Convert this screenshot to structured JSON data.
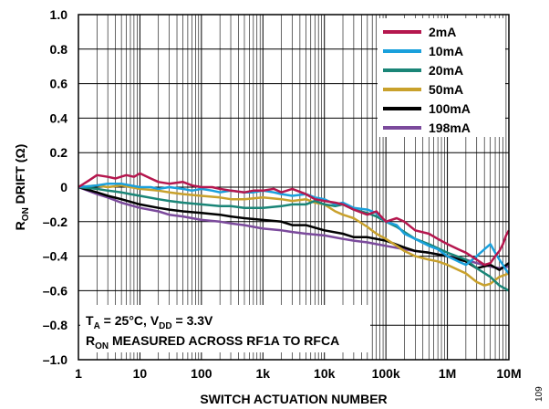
{
  "chart_data": {
    "type": "line",
    "xlabel": "SWITCH ACTUATION NUMBER",
    "ylabel": {
      "main": "R",
      "sub": "ON",
      "rest": " DRIFT (Ω)"
    },
    "xscale": "log",
    "xlim": [
      1,
      10000000
    ],
    "ylim": [
      -1.0,
      1.0
    ],
    "grid": true,
    "legend_position": "top-right",
    "x_ticks": [
      {
        "value": 1,
        "label": "1"
      },
      {
        "value": 10,
        "label": "10"
      },
      {
        "value": 100,
        "label": "100"
      },
      {
        "value": 1000,
        "label": "1k"
      },
      {
        "value": 10000,
        "label": "10k"
      },
      {
        "value": 100000,
        "label": "100k"
      },
      {
        "value": 1000000,
        "label": "1M"
      },
      {
        "value": 10000000,
        "label": "10M"
      }
    ],
    "y_ticks": [
      {
        "value": 1.0,
        "label": "1.0"
      },
      {
        "value": 0.8,
        "label": "0.8"
      },
      {
        "value": 0.6,
        "label": "0.6"
      },
      {
        "value": 0.4,
        "label": "0.4"
      },
      {
        "value": 0.2,
        "label": "0.2"
      },
      {
        "value": 0,
        "label": "0"
      },
      {
        "value": -0.2,
        "label": "–0.2"
      },
      {
        "value": -0.4,
        "label": "–0.4"
      },
      {
        "value": -0.6,
        "label": "–0.6"
      },
      {
        "value": -0.8,
        "label": "–0.8"
      },
      {
        "value": -1.0,
        "label": "–1.0"
      }
    ],
    "annotation": {
      "line1": {
        "a": "T",
        "a_sub": "A",
        "b": " = 25°C, V",
        "b_sub": "DD",
        "c": " = 3.3V"
      },
      "line2": {
        "a": "R",
        "a_sub": "ON",
        "b": " MEASURED ACROSS RF1A TO RFCA"
      }
    },
    "figure_id": "109",
    "series": [
      {
        "name": "2mA",
        "color": "#b5174e",
        "x": [
          1,
          1.5,
          2,
          3,
          4,
          6,
          8,
          10,
          15,
          20,
          30,
          50,
          70,
          100,
          150,
          200,
          300,
          500,
          700,
          1000,
          1500,
          2000,
          3000,
          5000,
          7000,
          10000,
          15000,
          20000,
          30000,
          50000,
          70000,
          100000,
          150000,
          200000,
          300000,
          500000,
          700000,
          1000000,
          1500000,
          2000000,
          3000000,
          4000000,
          5000000,
          6000000,
          7000000,
          8000000,
          9000000,
          10000000
        ],
        "y": [
          0,
          0.04,
          0.07,
          0.06,
          0.05,
          0.07,
          0.06,
          0.08,
          0.05,
          0.03,
          0.02,
          0.03,
          0.01,
          0.0,
          0.0,
          -0.01,
          -0.02,
          -0.03,
          -0.02,
          -0.02,
          -0.01,
          -0.03,
          -0.01,
          -0.04,
          -0.07,
          -0.08,
          -0.09,
          -0.1,
          -0.13,
          -0.16,
          -0.14,
          -0.2,
          -0.18,
          -0.2,
          -0.25,
          -0.27,
          -0.3,
          -0.33,
          -0.36,
          -0.38,
          -0.42,
          -0.45,
          -0.44,
          -0.4,
          -0.37,
          -0.33,
          -0.28,
          -0.25
        ]
      },
      {
        "name": "10mA",
        "color": "#1aa0dc",
        "x": [
          1,
          2,
          3,
          5,
          7,
          10,
          15,
          20,
          30,
          50,
          70,
          100,
          150,
          200,
          300,
          500,
          700,
          1000,
          1500,
          2000,
          3000,
          5000,
          7000,
          10000,
          15000,
          20000,
          30000,
          50000,
          70000,
          100000,
          150000,
          200000,
          300000,
          500000,
          700000,
          1000000,
          1500000,
          2000000,
          3000000,
          4000000,
          5000000,
          6000000,
          7000000,
          8000000,
          9000000,
          10000000
        ],
        "y": [
          0,
          0.01,
          0.02,
          0.02,
          0.01,
          0.0,
          0.0,
          -0.01,
          0.0,
          -0.01,
          -0.02,
          -0.01,
          -0.02,
          -0.03,
          -0.02,
          -0.03,
          -0.03,
          -0.02,
          -0.03,
          -0.04,
          -0.05,
          -0.04,
          -0.06,
          -0.07,
          -0.1,
          -0.09,
          -0.12,
          -0.13,
          -0.15,
          -0.2,
          -0.22,
          -0.27,
          -0.3,
          -0.34,
          -0.36,
          -0.4,
          -0.43,
          -0.45,
          -0.4,
          -0.36,
          -0.33,
          -0.38,
          -0.42,
          -0.45,
          -0.48,
          -0.5
        ]
      },
      {
        "name": "20mA",
        "color": "#1a8577",
        "x": [
          1,
          2,
          3,
          5,
          7,
          10,
          20,
          30,
          50,
          100,
          200,
          300,
          500,
          1000,
          2000,
          3000,
          5000,
          7000,
          10000,
          15000,
          20000,
          30000,
          50000,
          70000,
          100000,
          150000,
          200000,
          300000,
          500000,
          1000000,
          2000000,
          3000000,
          5000000,
          7000000,
          10000000
        ],
        "y": [
          0,
          -0.01,
          -0.02,
          -0.03,
          -0.04,
          -0.05,
          -0.07,
          -0.08,
          -0.09,
          -0.1,
          -0.11,
          -0.11,
          -0.12,
          -0.12,
          -0.11,
          -0.1,
          -0.1,
          -0.08,
          -0.1,
          -0.11,
          -0.1,
          -0.13,
          -0.15,
          -0.17,
          -0.2,
          -0.23,
          -0.26,
          -0.3,
          -0.33,
          -0.38,
          -0.42,
          -0.47,
          -0.52,
          -0.57,
          -0.6
        ]
      },
      {
        "name": "50mA",
        "color": "#c9a12c",
        "x": [
          1,
          2,
          3,
          5,
          10,
          20,
          30,
          50,
          100,
          200,
          300,
          500,
          1000,
          2000,
          3000,
          5000,
          7000,
          10000,
          15000,
          20000,
          30000,
          50000,
          70000,
          100000,
          150000,
          200000,
          300000,
          500000,
          700000,
          1000000,
          2000000,
          3000000,
          4000000,
          5000000,
          7000000,
          10000000
        ],
        "y": [
          0,
          0.01,
          0.0,
          0.01,
          -0.01,
          -0.02,
          -0.03,
          -0.04,
          -0.05,
          -0.06,
          -0.07,
          -0.07,
          -0.06,
          -0.07,
          -0.08,
          -0.07,
          -0.09,
          -0.1,
          -0.14,
          -0.16,
          -0.18,
          -0.23,
          -0.27,
          -0.3,
          -0.34,
          -0.37,
          -0.4,
          -0.42,
          -0.43,
          -0.45,
          -0.5,
          -0.55,
          -0.57,
          -0.56,
          -0.52,
          -0.5
        ]
      },
      {
        "name": "100mA",
        "color": "#000000",
        "x": [
          1,
          2,
          3,
          5,
          10,
          20,
          30,
          50,
          100,
          200,
          300,
          500,
          1000,
          2000,
          3000,
          5000,
          10000,
          20000,
          30000,
          50000,
          100000,
          200000,
          300000,
          500000,
          1000000,
          2000000,
          3000000,
          5000000,
          7000000,
          10000000
        ],
        "y": [
          0,
          -0.03,
          -0.05,
          -0.07,
          -0.1,
          -0.12,
          -0.13,
          -0.14,
          -0.15,
          -0.16,
          -0.17,
          -0.18,
          -0.19,
          -0.2,
          -0.22,
          -0.22,
          -0.25,
          -0.27,
          -0.29,
          -0.29,
          -0.31,
          -0.35,
          -0.37,
          -0.38,
          -0.4,
          -0.43,
          -0.47,
          -0.45,
          -0.48,
          -0.44
        ]
      },
      {
        "name": "198mA",
        "color": "#7b4a9c",
        "x": [
          1,
          2,
          3,
          5,
          10,
          20,
          30,
          50,
          100,
          200,
          300,
          500,
          1000,
          2000,
          3000,
          5000,
          10000,
          20000,
          30000,
          50000,
          100000,
          200000,
          300000,
          500000,
          1000000,
          2000000,
          3000000,
          5000000,
          7000000,
          10000000
        ],
        "y": [
          0,
          -0.04,
          -0.06,
          -0.09,
          -0.12,
          -0.14,
          -0.16,
          -0.17,
          -0.19,
          -0.2,
          -0.21,
          -0.22,
          -0.24,
          -0.25,
          -0.26,
          -0.27,
          -0.28,
          -0.3,
          -0.31,
          -0.32,
          -0.34,
          -0.36,
          -0.37,
          -0.38,
          -0.4,
          -0.42,
          -0.44,
          -0.46,
          -0.47,
          -0.46
        ]
      }
    ]
  }
}
